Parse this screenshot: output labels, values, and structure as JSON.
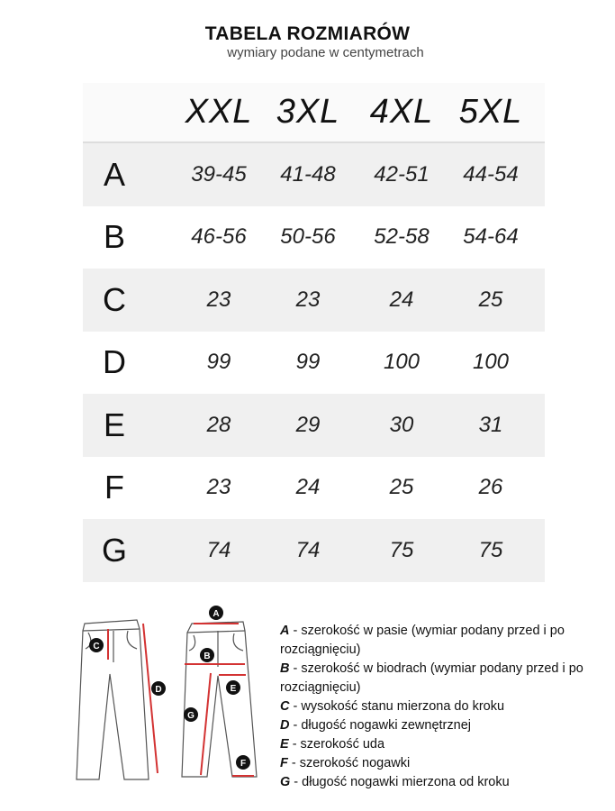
{
  "title": "TABELA ROZMIARÓW",
  "subtitle": "wymiary podane w centymetrach",
  "table": {
    "columns": [
      "XXL",
      "3XL",
      "4XL",
      "5XL"
    ],
    "rows": [
      {
        "label": "A",
        "values": [
          "39-45",
          "41-48",
          "42-51",
          "44-54"
        ]
      },
      {
        "label": "B",
        "values": [
          "46-56",
          "50-56",
          "52-58",
          "54-64"
        ]
      },
      {
        "label": "C",
        "values": [
          "23",
          "23",
          "24",
          "25"
        ]
      },
      {
        "label": "D",
        "values": [
          "99",
          "99",
          "100",
          "100"
        ]
      },
      {
        "label": "E",
        "values": [
          "28",
          "29",
          "30",
          "31"
        ]
      },
      {
        "label": "F",
        "values": [
          "23",
          "24",
          "25",
          "26"
        ]
      },
      {
        "label": "G",
        "values": [
          "74",
          "74",
          "75",
          "75"
        ]
      }
    ]
  },
  "legend": [
    {
      "key": "A",
      "text": " - szerokość w pasie (wymiar podany przed i po rozciągnięciu)"
    },
    {
      "key": "B",
      "text": " - szerokość w biodrach (wymiar podany przed i po rozciągnięciu)"
    },
    {
      "key": "C",
      "text": " - wysokość stanu mierzona do kroku"
    },
    {
      "key": "D",
      "text": " - długość nogawki zewnętrznej"
    },
    {
      "key": "E",
      "text": " - szerokość uda"
    },
    {
      "key": "F",
      "text": " - szerokość nogawki"
    },
    {
      "key": "G",
      "text": " - długość nogawki mierzona od kroku"
    }
  ],
  "colors": {
    "row_shade": "#f0f0f0",
    "arrow": "#d33333",
    "marker": "#111111"
  }
}
